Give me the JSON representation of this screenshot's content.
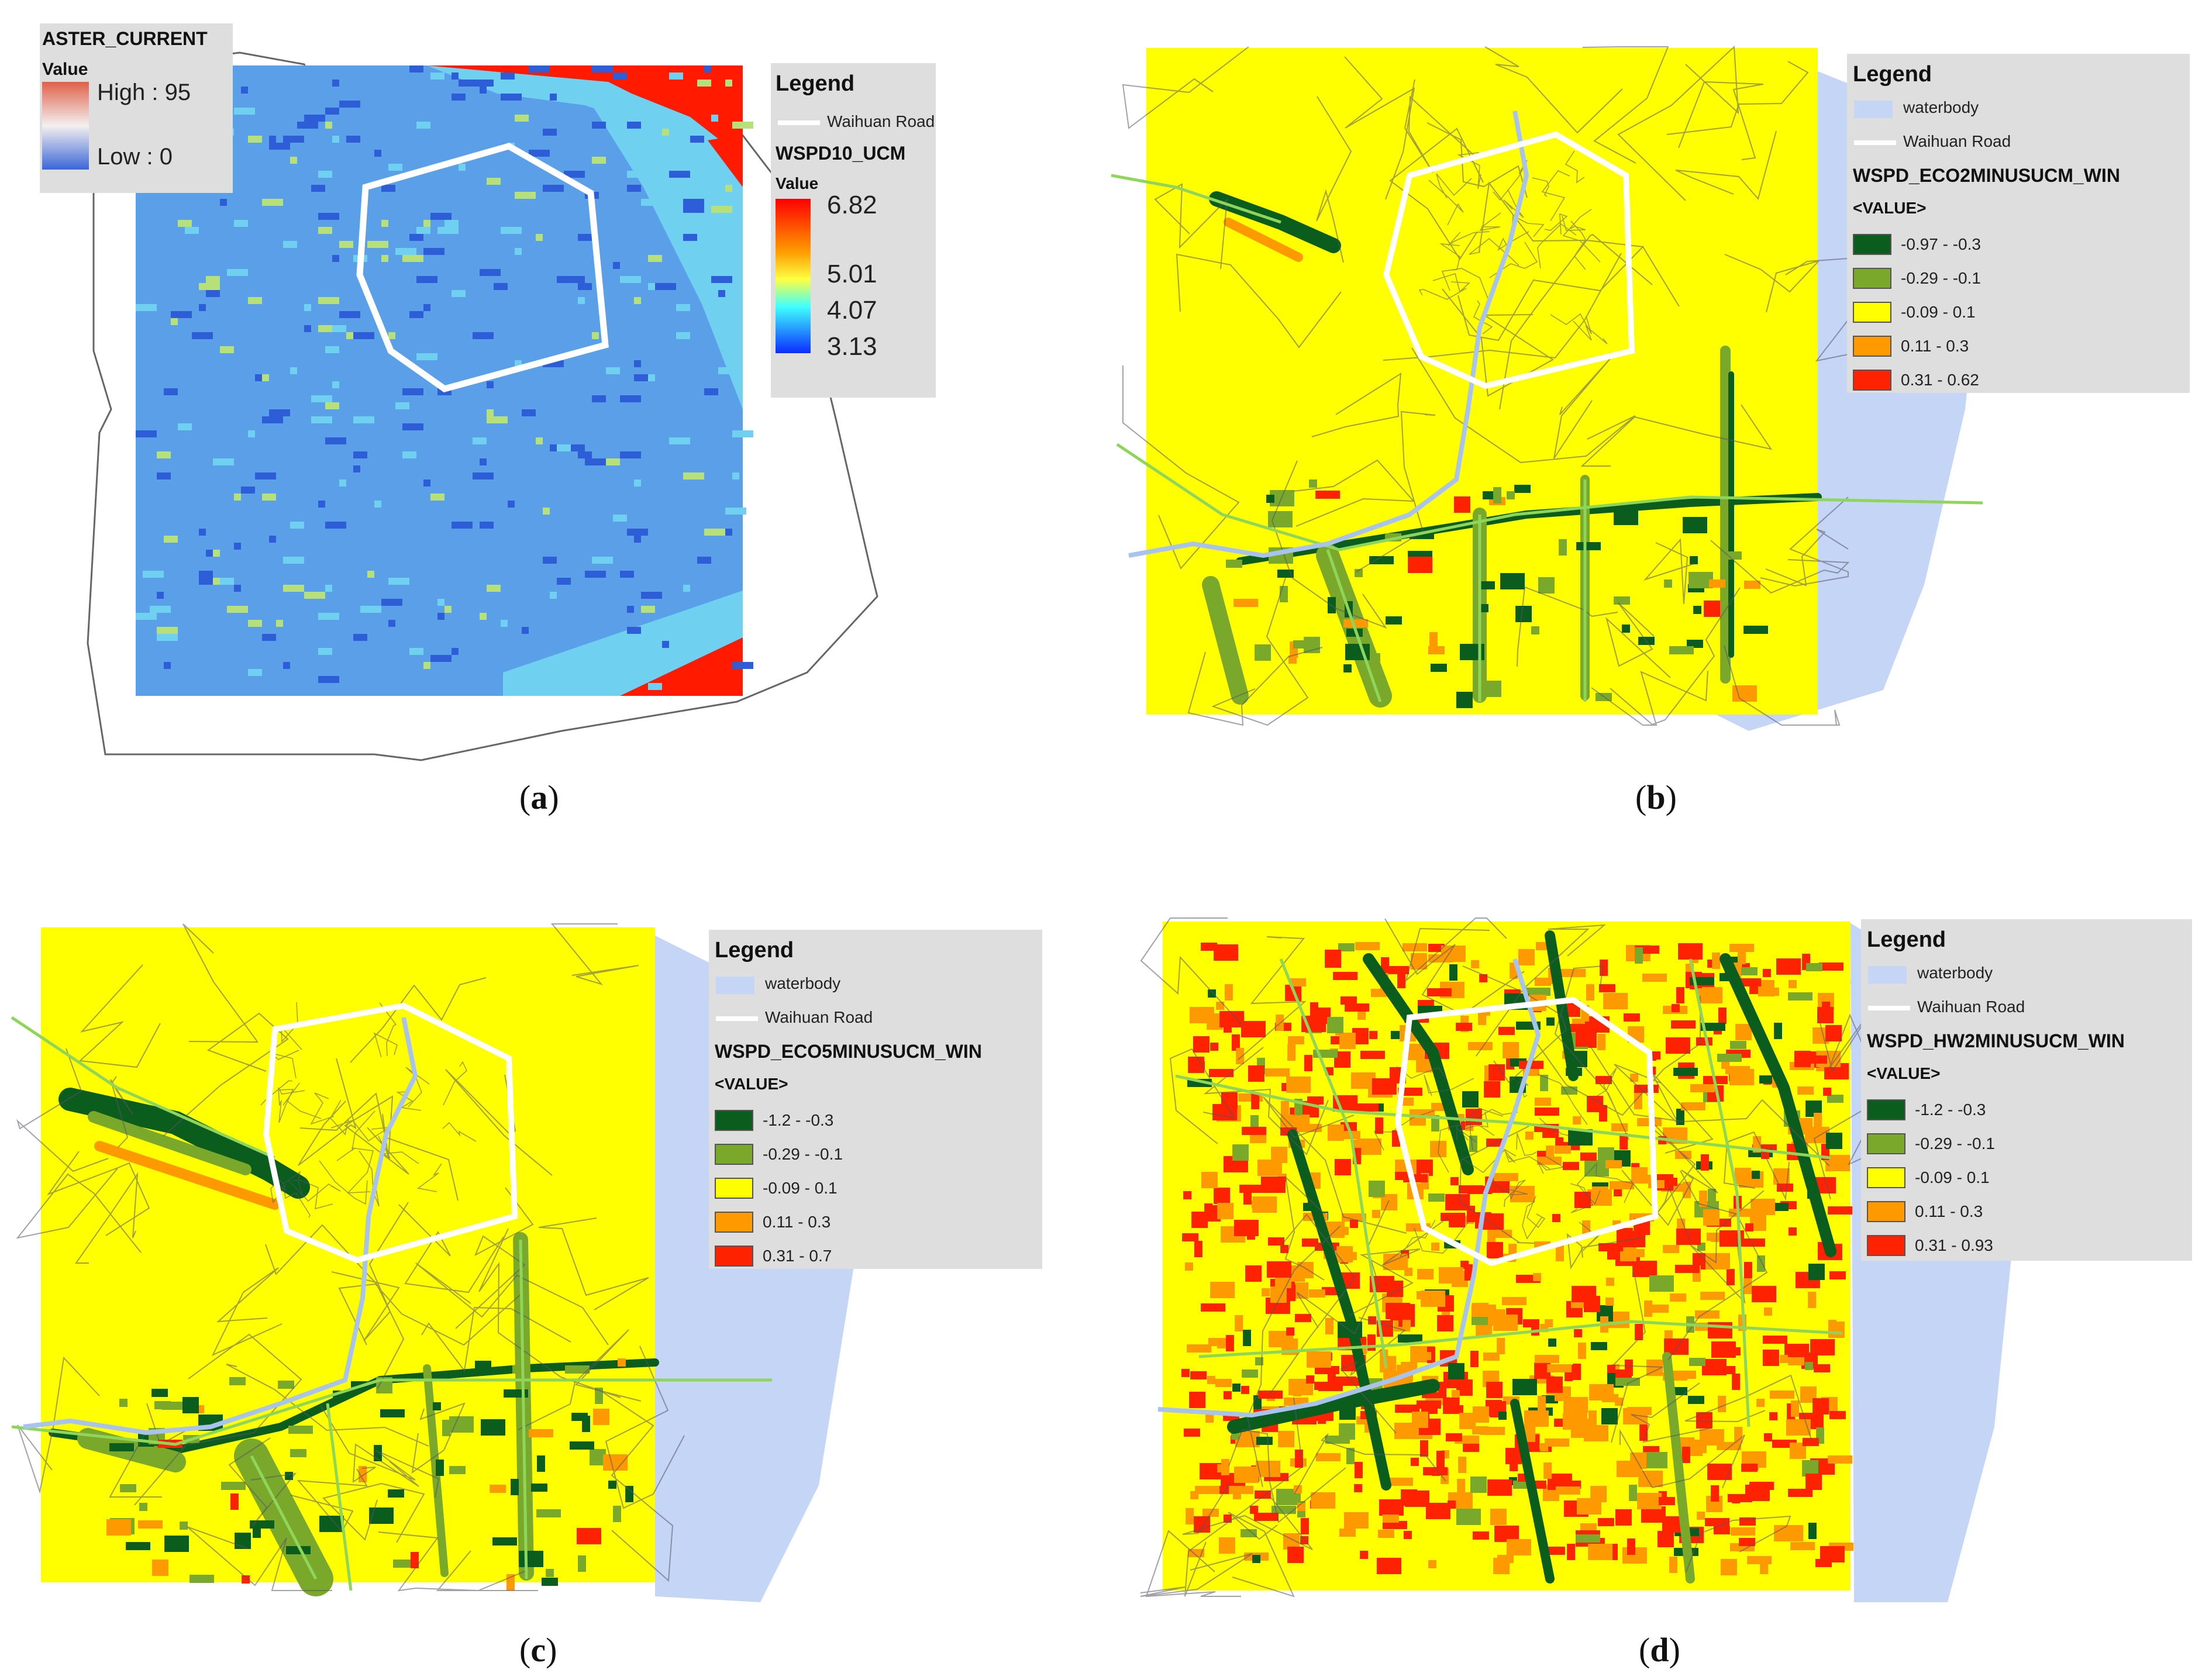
{
  "panels": [
    {
      "id": "a",
      "caption_open": "(",
      "caption_letter": "a",
      "caption_close": ")",
      "inset_legend": {
        "title": "ASTER_CURRENT",
        "value_label": "Value",
        "high_label": "High : 95",
        "low_label": "Low : 0",
        "ramp_colors": [
          "#e0604a",
          "#f4f0f0",
          "#3a66d8"
        ]
      },
      "legend": {
        "title": "Legend",
        "road_label": "Waihuan Road",
        "layer": "WSPD10_UCM",
        "value_label": "Value",
        "ticks": [
          "6.82",
          "5.01",
          "4.07",
          "3.13"
        ],
        "ramp_colors": [
          "#ff0000",
          "#ff9a00",
          "#ffff40",
          "#40ffff",
          "#0a2cff"
        ]
      },
      "map_colors": {
        "base": "#5aa0e8",
        "light": "#6fd0f0",
        "deep": "#2d5ed8",
        "highlight": "#b8e07a",
        "edge": "#ff1a00"
      }
    },
    {
      "id": "b",
      "caption_open": "(",
      "caption_letter": "b",
      "caption_close": ")",
      "legend": {
        "title": "Legend",
        "water_label": "waterbody",
        "road_label": "Waihuan Road",
        "layer": "WSPD_ECO2MINUSUCM_WIN",
        "value_label": "<VALUE>",
        "classes": [
          {
            "label": "-0.97 - -0.3",
            "color": "#0b5d1e"
          },
          {
            "label": "-0.29 - -0.1",
            "color": "#7aa82a"
          },
          {
            "label": "-0.09 - 0.1",
            "color": "#ffff00"
          },
          {
            "label": "0.11 - 0.3",
            "color": "#ff9900"
          },
          {
            "label": "0.31 - 0.62",
            "color": "#ff2200"
          }
        ]
      }
    },
    {
      "id": "c",
      "caption_open": "(",
      "caption_letter": "c",
      "caption_close": ")",
      "legend": {
        "title": "Legend",
        "water_label": "waterbody",
        "road_label": "Waihuan Road",
        "layer": "WSPD_ECO5MINUSUCM_WIN",
        "value_label": "<VALUE>",
        "classes": [
          {
            "label": "-1.2 - -0.3",
            "color": "#0b5d1e"
          },
          {
            "label": "-0.29 - -0.1",
            "color": "#7aa82a"
          },
          {
            "label": "-0.09 - 0.1",
            "color": "#ffff00"
          },
          {
            "label": "0.11 - 0.3",
            "color": "#ff9900"
          },
          {
            "label": "0.31 - 0.7",
            "color": "#ff2200"
          }
        ]
      }
    },
    {
      "id": "d",
      "caption_open": "(",
      "caption_letter": "d",
      "caption_close": ")",
      "legend": {
        "title": "Legend",
        "water_label": "waterbody",
        "road_label": "Waihuan Road",
        "layer": "WSPD_HW2MINUSUCM_WIN",
        "value_label": "<VALUE>",
        "classes": [
          {
            "label": "-1.2 - -0.3",
            "color": "#0b5d1e"
          },
          {
            "label": "-0.29 - -0.1",
            "color": "#7aa82a"
          },
          {
            "label": "-0.09 - 0.1",
            "color": "#ffff00"
          },
          {
            "label": "0.11 - 0.3",
            "color": "#ff9900"
          },
          {
            "label": "0.31 - 0.93",
            "color": "#ff2200"
          }
        ]
      }
    }
  ],
  "water_color": "#c5d5f5",
  "road_color": "#ffffff",
  "boundary_color": "#555555",
  "river_color": "#a8c4ee",
  "green_line_color": "#8ed65a"
}
